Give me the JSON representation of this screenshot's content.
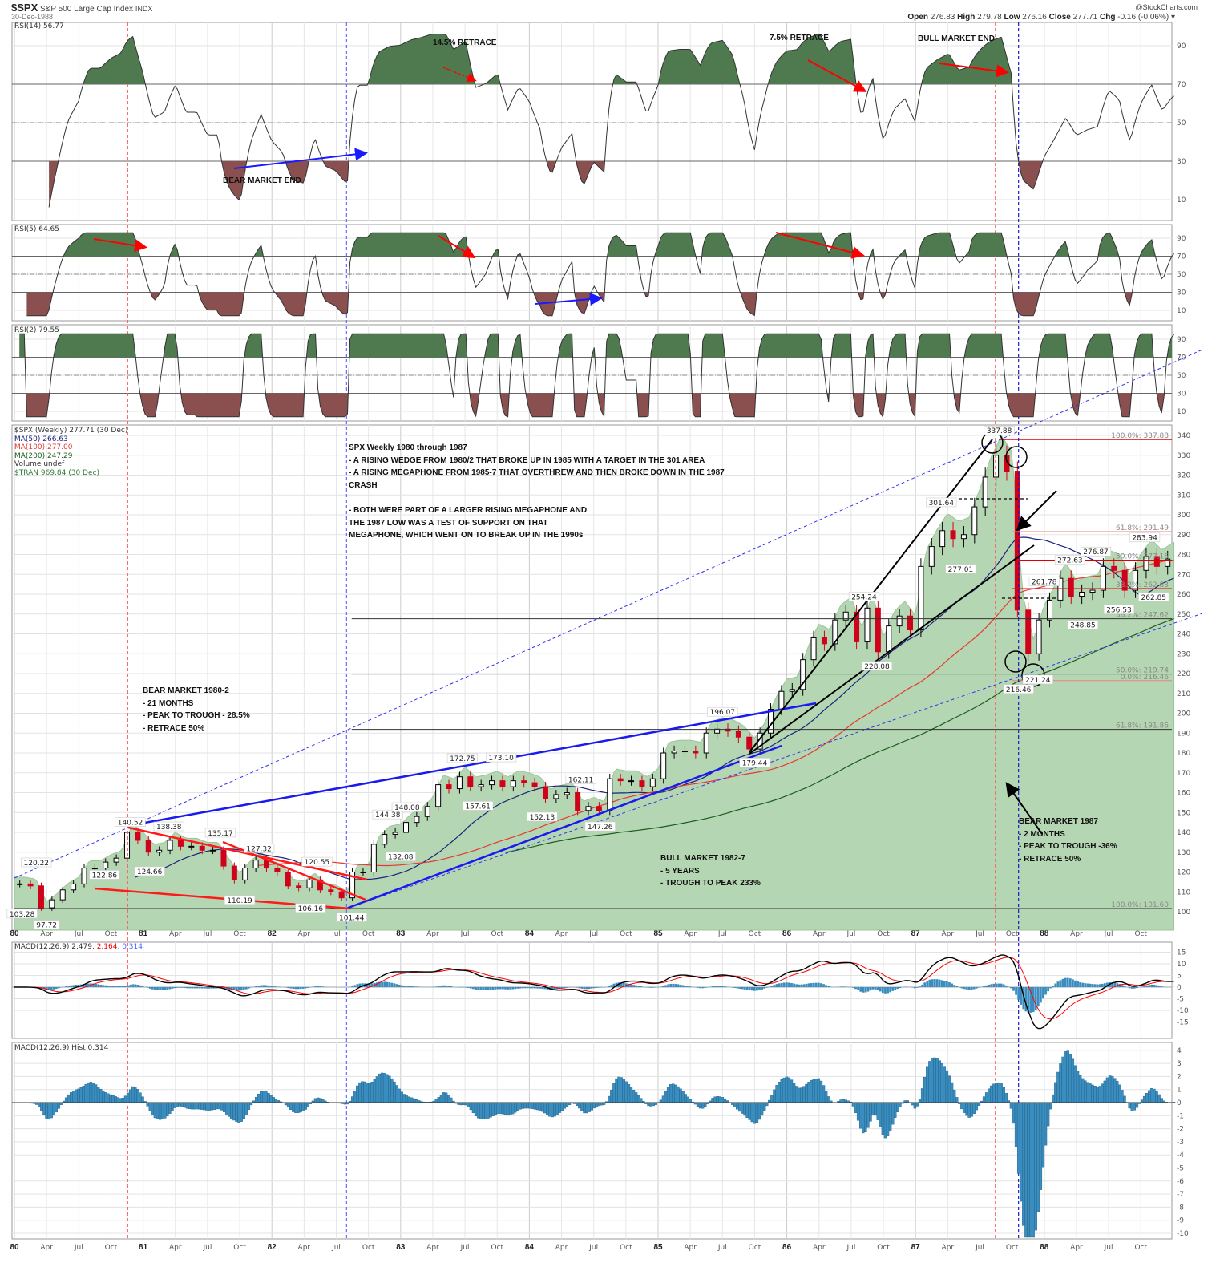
{
  "header": {
    "symbol": "$SPX",
    "name": "S&P 500 Large Cap Index",
    "exchange": "INDX",
    "date": "30-Dec-1988",
    "brand": "@StockCharts.com",
    "ohlc": {
      "open_label": "Open",
      "open": "276.83",
      "high_label": "High",
      "high": "279.78",
      "low_label": "Low",
      "low": "276.16",
      "close_label": "Close",
      "close": "277.71",
      "chg_label": "Chg",
      "chg": "-0.16 (-0.06%)"
    }
  },
  "panels": {
    "rsi14": {
      "legend": "RSI(14) 56.77",
      "ticks": [
        90,
        70,
        50,
        30,
        10
      ]
    },
    "rsi5": {
      "legend": "RSI(5) 64.65",
      "ticks": [
        90,
        70,
        50,
        30,
        10
      ]
    },
    "rsi2": {
      "legend": "RSI(2) 79.55",
      "ticks": [
        90,
        70,
        50,
        30,
        10
      ]
    },
    "price": {
      "legend": [
        "$SPX (Weekly) 277.71 (30 Dec)",
        "MA(50) 266.63",
        "MA(100) 277.00",
        "MA(200) 247.29",
        "Volume undef",
        "$TRAN 969.84 (30 Dec)"
      ],
      "ticks": [
        340,
        330,
        320,
        310,
        300,
        290,
        280,
        270,
        260,
        250,
        240,
        230,
        220,
        210,
        200,
        190,
        180,
        170,
        160,
        150,
        140,
        130,
        120,
        110,
        100
      ]
    },
    "macd": {
      "legend_main": "MACD(12,26,9) 2.479",
      "legend_signal": ", 2.164",
      "legend_hist": ", 0.314",
      "ticks": [
        15,
        10,
        5,
        0,
        -5,
        -10,
        -15
      ]
    },
    "hist": {
      "legend": "MACD(12,26,9) Hist 0.314",
      "ticks": [
        4,
        3,
        2,
        1,
        0,
        -1,
        -2,
        -3,
        -4,
        -5,
        -6,
        -7,
        -8,
        -9,
        -10
      ]
    }
  },
  "x_axis": {
    "years": [
      "80",
      "81",
      "82",
      "83",
      "84",
      "85",
      "86",
      "87",
      "88"
    ],
    "months": [
      "Apr",
      "Jul",
      "Oct"
    ]
  },
  "annotations": {
    "rsi_retrace_1": "14.5% RETRACE",
    "rsi_retrace_2": "7.5% RETRACE",
    "rsi_bull_end": "BULL MARKET END",
    "rsi_bear_end": "BEAR MARKET END",
    "main_note": [
      "SPX Weekly 1980 through 1987",
      "- A RISING WEDGE FROM 1980/2 THAT BROKE UP IN 1985 WITH A TARGET IN THE 301 AREA",
      "- A RISING MEGAPHONE FROM 1985-7 THAT OVERTHREW AND THEN BROKE DOWN IN THE 1987",
      "CRASH",
      "",
      "- BOTH WERE PART OF A LARGER RISING MEGAPHONE AND",
      "THE 1987 LOW WAS A TEST OF SUPPORT ON THAT",
      "MEGAPHONE, WHICH WENT ON TO BREAK UP IN THE 1990s"
    ],
    "bear_1980": [
      "BEAR MARKET 1980-2",
      "- 21 MONTHS",
      "- PEAK TO TROUGH - 28.5%",
      "- RETRACE 50%"
    ],
    "bull_1982": [
      "BULL MARKET 1982-7",
      "- 5 YEARS",
      "- TROUGH TO PEAK 233%"
    ],
    "bear_1987": [
      "BEAR MARKET 1987",
      "- 2 MONTHS",
      "- PEAK TO TROUGH -36%",
      "- RETRACE 50%"
    ]
  },
  "chart_data": {
    "type": "candlestick",
    "title": "SPX Weekly 1980 through 1987",
    "x_start": "1980-01",
    "frequency_note": "approximate monthly closes read from the weekly chart",
    "closes": [
      114,
      113,
      102,
      106,
      111,
      114,
      122,
      122,
      125,
      127,
      140,
      136,
      130,
      131,
      136,
      133,
      133,
      131,
      131,
      123,
      116,
      122,
      126,
      122,
      120,
      113,
      112,
      116,
      111,
      110,
      107,
      120,
      120,
      134,
      139,
      140,
      145,
      148,
      153,
      164,
      162,
      168,
      163,
      164,
      166,
      163,
      166,
      165,
      163,
      157,
      159,
      160,
      151,
      153,
      151,
      167,
      166,
      166,
      163,
      167,
      180,
      181,
      181,
      180,
      190,
      192,
      191,
      188,
      182,
      190,
      202,
      211,
      212,
      227,
      238,
      235,
      247,
      251,
      236,
      253,
      231,
      244,
      249,
      242,
      274,
      284,
      292,
      288,
      290,
      304,
      319,
      330,
      322,
      252,
      230,
      247,
      257,
      268,
      259,
      261,
      262,
      274,
      272,
      262,
      272,
      279,
      274,
      277.71
    ],
    "ylim": [
      95,
      345
    ],
    "y_scale": "linear",
    "grid": true,
    "colors": {
      "up": "#000000",
      "down": "#d0021b",
      "tran_area": "#b5d6b2",
      "ma50": "#1a237e",
      "ma100": "#e53935",
      "ma200": "#1b5e20",
      "macd": "#000000",
      "signal": "#ff0000",
      "hist": "#3a8dbf",
      "rsi_hi": "#4f7a4f",
      "rsi_lo": "#8a4f4f"
    },
    "point_labels": [
      {
        "t": 1980.06,
        "v": 103.28,
        "label": "103.28",
        "pos": "below"
      },
      {
        "t": 1980.17,
        "v": 120.22,
        "label": "120.22",
        "pos": "above"
      },
      {
        "t": 1980.25,
        "v": 97.72,
        "label": "97.72",
        "pos": "below"
      },
      {
        "t": 1980.7,
        "v": 122.86,
        "label": "122.86",
        "pos": "below"
      },
      {
        "t": 1980.9,
        "v": 140.52,
        "label": "140.52",
        "pos": "above"
      },
      {
        "t": 1981.2,
        "v": 138.38,
        "label": "138.38",
        "pos": "above"
      },
      {
        "t": 1981.05,
        "v": 124.66,
        "label": "124.66",
        "pos": "below"
      },
      {
        "t": 1981.6,
        "v": 135.17,
        "label": "135.17",
        "pos": "above"
      },
      {
        "t": 1981.9,
        "v": 127.32,
        "label": "127.32",
        "pos": "above"
      },
      {
        "t": 1981.75,
        "v": 110.19,
        "label": "110.19",
        "pos": "below"
      },
      {
        "t": 1982.35,
        "v": 120.55,
        "label": "120.55",
        "pos": "above"
      },
      {
        "t": 1982.3,
        "v": 106.16,
        "label": "106.16",
        "pos": "below"
      },
      {
        "t": 1982.62,
        "v": 101.44,
        "label": "101.44",
        "pos": "below"
      },
      {
        "t": 1982.9,
        "v": 144.38,
        "label": "144.38",
        "pos": "above"
      },
      {
        "t": 1983.0,
        "v": 132.08,
        "label": "132.08",
        "pos": "below"
      },
      {
        "t": 1983.05,
        "v": 148.08,
        "label": "148.08",
        "pos": "above"
      },
      {
        "t": 1983.48,
        "v": 172.75,
        "label": "172.75",
        "pos": "above"
      },
      {
        "t": 1983.78,
        "v": 173.1,
        "label": "173.10",
        "pos": "above"
      },
      {
        "t": 1983.6,
        "v": 157.61,
        "label": "157.61",
        "pos": "below"
      },
      {
        "t": 1984.4,
        "v": 162.11,
        "label": "162.11",
        "pos": "above"
      },
      {
        "t": 1984.1,
        "v": 152.13,
        "label": "152.13",
        "pos": "below"
      },
      {
        "t": 1984.55,
        "v": 147.26,
        "label": "147.26",
        "pos": "below"
      },
      {
        "t": 1985.5,
        "v": 196.07,
        "label": "196.07",
        "pos": "above"
      },
      {
        "t": 1985.75,
        "v": 179.44,
        "label": "179.44",
        "pos": "below"
      },
      {
        "t": 1986.6,
        "v": 254.24,
        "label": "254.24",
        "pos": "above"
      },
      {
        "t": 1986.7,
        "v": 228.08,
        "label": "228.08",
        "pos": "below"
      },
      {
        "t": 1987.2,
        "v": 301.64,
        "label": "301.64",
        "pos": "above"
      },
      {
        "t": 1987.35,
        "v": 277.01,
        "label": "277.01",
        "pos": "below"
      },
      {
        "t": 1987.65,
        "v": 337.88,
        "label": "337.88",
        "pos": "above"
      },
      {
        "t": 1987.8,
        "v": 216.46,
        "label": "216.46",
        "pos": "below"
      },
      {
        "t": 1987.95,
        "v": 221.24,
        "label": "221.24",
        "pos": "below"
      },
      {
        "t": 1988.0,
        "v": 261.78,
        "label": "261.78",
        "pos": "above"
      },
      {
        "t": 1988.2,
        "v": 272.63,
        "label": "272.63",
        "pos": "above"
      },
      {
        "t": 1988.3,
        "v": 248.85,
        "label": "248.85",
        "pos": "below"
      },
      {
        "t": 1988.4,
        "v": 276.87,
        "label": "276.87",
        "pos": "above"
      },
      {
        "t": 1988.58,
        "v": 256.53,
        "label": "256.53",
        "pos": "below"
      },
      {
        "t": 1988.78,
        "v": 283.94,
        "label": "283.94",
        "pos": "above"
      },
      {
        "t": 1988.85,
        "v": 262.85,
        "label": "262.85",
        "pos": "below"
      }
    ],
    "fib_levels": [
      {
        "v": 337.88,
        "label": "100.0%: 337.88",
        "color": "#e00000",
        "from": 1987.65
      },
      {
        "v": 291.49,
        "label": "61.8%: 291.49",
        "color": "#f08080",
        "from": 1987.75
      },
      {
        "v": 277.16,
        "label": "50.0%: 277.16",
        "color": "#e00000",
        "from": 1987.75
      },
      {
        "v": 262.83,
        "label": "38.2%: 262.83",
        "color": "#e00000",
        "from": 1987.75
      },
      {
        "v": 247.62,
        "label": "38.2%: 247.62",
        "color": "#333333",
        "from": 1982.62
      },
      {
        "v": 219.74,
        "label": "50.0%: 219.74",
        "color": "#333333",
        "from": 1982.62
      },
      {
        "v": 216.46,
        "label": "0.0%: 216.46",
        "color": "#f08080",
        "from": 1987.75
      },
      {
        "v": 191.86,
        "label": "61.8%: 191.86",
        "color": "#333333",
        "from": 1982.62
      },
      {
        "v": 101.6,
        "label": "100.0%: 101.60",
        "color": "#333333",
        "from": 1980.0
      }
    ],
    "vertical_markers": [
      {
        "t": 1980.88,
        "color": "#ff6060"
      },
      {
        "t": 1982.58,
        "color": "#6a6aff"
      },
      {
        "t": 1987.62,
        "color": "#ff6060"
      },
      {
        "t": 1987.8,
        "color": "#1a1acc"
      }
    ]
  }
}
